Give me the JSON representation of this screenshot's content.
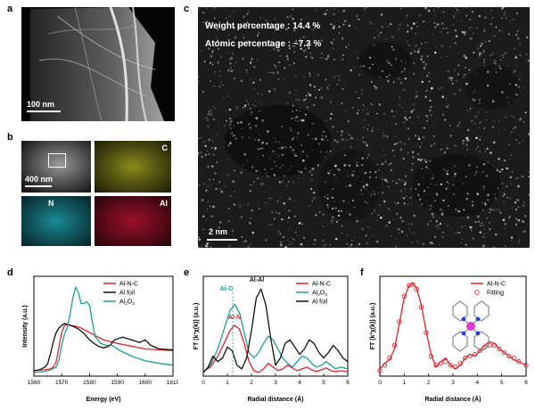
{
  "panels": {
    "a": {
      "letter": "a",
      "scale_label": "100 nm"
    },
    "b": {
      "letter": "b",
      "scale_label": "400 nm",
      "maps": {
        "c": "C",
        "n": "N",
        "al": "Al"
      }
    },
    "c": {
      "letter": "c",
      "weight_text": "Weight percentage : 14.4 %",
      "atomic_text": "Atomic percentage : ~7.3 %",
      "scale_label": "2 nm"
    },
    "d": {
      "letter": "d"
    },
    "e": {
      "letter": "e"
    },
    "f": {
      "letter": "f"
    }
  },
  "colors": {
    "red": "#e8202a",
    "black": "#111111",
    "teal": "#1d9e9a",
    "map_c": "#8c8a1a",
    "map_n": "#1a8a95",
    "map_al": "#9a1028"
  },
  "chart_data": [
    {
      "id": "d",
      "type": "line",
      "xlabel": "Energy (eV)",
      "ylabel": "Intensity (a.u.)",
      "xlim": [
        1560,
        1610
      ],
      "ylim": [
        0,
        1.1
      ],
      "xticks": [
        1560,
        1570,
        1580,
        1590,
        1600,
        1610
      ],
      "legend_position": "top-right",
      "series": [
        {
          "name": "Al-N-C",
          "color": "#e8202a",
          "x": [
            1560,
            1564,
            1566,
            1567,
            1568,
            1569,
            1570,
            1571,
            1572,
            1573,
            1575,
            1577,
            1580,
            1585,
            1590,
            1595,
            1600,
            1605,
            1610
          ],
          "y": [
            0.06,
            0.07,
            0.08,
            0.1,
            0.16,
            0.32,
            0.48,
            0.56,
            0.57,
            0.56,
            0.55,
            0.53,
            0.48,
            0.4,
            0.36,
            0.33,
            0.3,
            0.29,
            0.28
          ]
        },
        {
          "name": "Al foil",
          "color": "#111111",
          "x": [
            1560,
            1562,
            1564,
            1565,
            1566,
            1567,
            1568,
            1569,
            1570,
            1571,
            1572,
            1574,
            1576,
            1578,
            1580,
            1583,
            1585,
            1587,
            1589,
            1592,
            1595,
            1598,
            1600,
            1602,
            1605,
            1610
          ],
          "y": [
            0.06,
            0.07,
            0.1,
            0.14,
            0.25,
            0.38,
            0.48,
            0.53,
            0.56,
            0.58,
            0.57,
            0.55,
            0.52,
            0.47,
            0.4,
            0.33,
            0.31,
            0.33,
            0.4,
            0.43,
            0.4,
            0.37,
            0.4,
            0.34,
            0.3,
            0.29
          ]
        },
        {
          "name": "Al2O3",
          "color": "#1d9e9a",
          "x": [
            1560,
            1564,
            1566,
            1568,
            1569,
            1570,
            1571,
            1572,
            1573,
            1574,
            1575,
            1576,
            1577,
            1578,
            1579,
            1580,
            1581,
            1582,
            1584,
            1586,
            1588,
            1590,
            1593,
            1596,
            1600,
            1605,
            1610
          ],
          "y": [
            0.04,
            0.05,
            0.07,
            0.1,
            0.18,
            0.34,
            0.46,
            0.54,
            0.68,
            0.86,
            0.98,
            0.92,
            0.8,
            0.8,
            0.82,
            0.78,
            0.6,
            0.44,
            0.36,
            0.34,
            0.34,
            0.3,
            0.25,
            0.21,
            0.17,
            0.14,
            0.12
          ]
        }
      ]
    },
    {
      "id": "e",
      "type": "line",
      "xlabel": "Radial distance (Å)",
      "ylabel": "FT (k³χ(k)) (a.u.)",
      "xlim": [
        0,
        6
      ],
      "ylim": [
        0,
        1.1
      ],
      "xticks": [
        0,
        1,
        2,
        3,
        4,
        5,
        6
      ],
      "legend_position": "top-right",
      "annotations": [
        {
          "text": "Al-O",
          "color": "#1d9e9a"
        },
        {
          "text": "Al-N",
          "color": "#e8202a"
        },
        {
          "text": "Al-Al",
          "color": "#111111"
        }
      ],
      "series": [
        {
          "name": "Al-N-C",
          "color": "#e8202a",
          "x": [
            0,
            0.3,
            0.6,
            0.9,
            1.1,
            1.3,
            1.5,
            1.7,
            1.9,
            2.1,
            2.3,
            2.5,
            2.7,
            2.9,
            3.1,
            3.3,
            3.5,
            3.7,
            3.9,
            4.1,
            4.3,
            4.5,
            4.7,
            4.9,
            5.1,
            5.3,
            5.5,
            5.7,
            6.0
          ],
          "y": [
            0.05,
            0.1,
            0.22,
            0.38,
            0.5,
            0.56,
            0.52,
            0.36,
            0.16,
            0.06,
            0.04,
            0.08,
            0.14,
            0.1,
            0.06,
            0.08,
            0.12,
            0.09,
            0.06,
            0.08,
            0.1,
            0.07,
            0.05,
            0.07,
            0.09,
            0.06,
            0.05,
            0.06,
            0.05
          ]
        },
        {
          "name": "Al2O3",
          "color": "#1d9e9a",
          "x": [
            0,
            0.3,
            0.6,
            0.9,
            1.1,
            1.3,
            1.5,
            1.7,
            1.9,
            2.1,
            2.3,
            2.5,
            2.7,
            2.9,
            3.1,
            3.3,
            3.5,
            3.7,
            3.9,
            4.1,
            4.3,
            4.5,
            4.7,
            4.9,
            5.1,
            5.3,
            5.5,
            5.7,
            6.0
          ],
          "y": [
            0.04,
            0.12,
            0.3,
            0.55,
            0.72,
            0.79,
            0.7,
            0.48,
            0.26,
            0.2,
            0.26,
            0.36,
            0.44,
            0.4,
            0.3,
            0.2,
            0.14,
            0.1,
            0.16,
            0.22,
            0.2,
            0.14,
            0.1,
            0.12,
            0.16,
            0.12,
            0.08,
            0.1,
            0.08
          ]
        },
        {
          "name": "Al foil",
          "color": "#111111",
          "x": [
            0,
            0.2,
            0.4,
            0.6,
            0.8,
            1.0,
            1.2,
            1.4,
            1.6,
            1.8,
            2.0,
            2.2,
            2.4,
            2.6,
            2.8,
            3.0,
            3.2,
            3.4,
            3.6,
            3.8,
            4.0,
            4.2,
            4.4,
            4.6,
            4.8,
            5.0,
            5.2,
            5.4,
            5.6,
            5.8,
            6.0
          ],
          "y": [
            0.04,
            0.1,
            0.22,
            0.16,
            0.2,
            0.32,
            0.28,
            0.12,
            0.08,
            0.2,
            0.5,
            0.86,
            0.96,
            0.78,
            0.42,
            0.12,
            0.2,
            0.36,
            0.4,
            0.32,
            0.24,
            0.3,
            0.4,
            0.36,
            0.26,
            0.2,
            0.26,
            0.34,
            0.28,
            0.2,
            0.16
          ]
        }
      ]
    },
    {
      "id": "f",
      "type": "line",
      "xlabel": "Radial distance (Å)",
      "ylabel": "FT (k³χ(k)) (a.u.)",
      "xlim": [
        0,
        6
      ],
      "ylim": [
        0,
        1.1
      ],
      "xticks": [
        0,
        1,
        2,
        3,
        4,
        5,
        6
      ],
      "legend_position": "top-right",
      "series": [
        {
          "name": "Al-N-C",
          "color": "#e8202a",
          "x": [
            0,
            0.2,
            0.4,
            0.6,
            0.8,
            1.0,
            1.2,
            1.35,
            1.5,
            1.7,
            1.9,
            2.1,
            2.3,
            2.5,
            2.7,
            2.9,
            3.1,
            3.3,
            3.5,
            3.7,
            3.9,
            4.1,
            4.3,
            4.5,
            4.7,
            4.9,
            5.1,
            5.3,
            5.5,
            5.7,
            6.0
          ],
          "y": [
            0.08,
            0.14,
            0.18,
            0.3,
            0.58,
            0.86,
            1.0,
            1.02,
            0.98,
            0.78,
            0.5,
            0.24,
            0.1,
            0.16,
            0.2,
            0.12,
            0.08,
            0.12,
            0.2,
            0.24,
            0.22,
            0.28,
            0.34,
            0.38,
            0.36,
            0.3,
            0.26,
            0.22,
            0.18,
            0.16,
            0.12
          ]
        },
        {
          "name": "Fitting",
          "color": "#e8202a",
          "marker": "open-circle",
          "x": [
            0,
            0.2,
            0.4,
            0.6,
            0.8,
            1.0,
            1.2,
            1.35,
            1.5,
            1.7,
            1.9,
            2.1,
            2.3,
            2.5,
            2.7,
            2.9,
            3.1,
            3.3,
            3.5,
            3.7,
            3.9,
            4.1,
            4.3,
            4.5,
            4.7,
            4.9,
            5.1,
            5.3,
            5.5,
            5.7,
            6.0
          ],
          "y": [
            0.06,
            0.12,
            0.2,
            0.34,
            0.6,
            0.88,
            1.0,
            1.01,
            0.96,
            0.76,
            0.48,
            0.22,
            0.12,
            0.14,
            0.16,
            0.12,
            0.1,
            0.14,
            0.2,
            0.22,
            0.24,
            0.28,
            0.32,
            0.34,
            0.34,
            0.3,
            0.26,
            0.22,
            0.2,
            0.16,
            0.12
          ]
        }
      ]
    }
  ]
}
